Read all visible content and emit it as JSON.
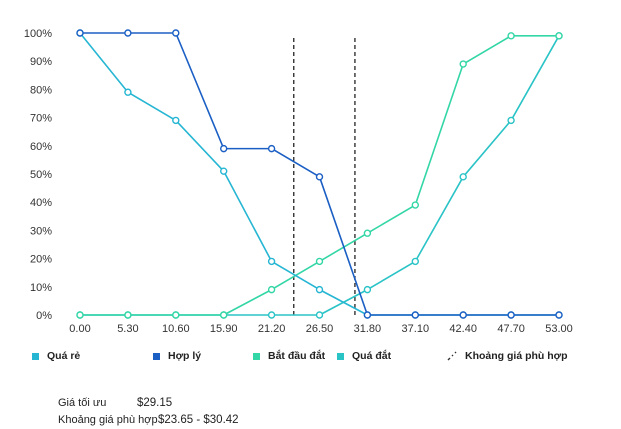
{
  "chart_data": {
    "type": "line",
    "x": [
      "0.00",
      "5.30",
      "10.60",
      "15.90",
      "21.20",
      "26.50",
      "31.80",
      "37.10",
      "42.40",
      "47.70",
      "53.00"
    ],
    "ylim": [
      0,
      100
    ],
    "yticks": [
      "0%",
      "10%",
      "20%",
      "30%",
      "40%",
      "50%",
      "60%",
      "70%",
      "80%",
      "90%",
      "100%"
    ],
    "series": [
      {
        "name": "Quá rẻ",
        "color": "#26b6d3",
        "values": [
          100,
          79,
          69,
          51,
          19,
          9,
          0,
          0,
          0,
          0,
          0
        ]
      },
      {
        "name": "Hợp lý",
        "color": "#1b5fc4",
        "values": [
          100,
          100,
          100,
          59,
          59,
          49,
          0,
          0,
          0,
          0,
          0
        ]
      },
      {
        "name": "Bắt đầu đắt",
        "color": "#33d6a6",
        "values": [
          0,
          0,
          0,
          0,
          9,
          19,
          29,
          39,
          89,
          99,
          99
        ]
      },
      {
        "name": "Quá đắt",
        "color": "#2ac3c6",
        "values": [
          0,
          0,
          0,
          0,
          0,
          0,
          9,
          19,
          49,
          69,
          99
        ]
      }
    ],
    "range_lines": {
      "name": "Khoảng giá phù hợp",
      "x": [
        23.65,
        30.42
      ],
      "color": "#333333"
    },
    "grid": false,
    "legend_position": "bottom"
  },
  "summary": {
    "optimal_label": "Giá tối ưu",
    "optimal_value": "$29.15",
    "range_label": "Khoảng giá phù hợp",
    "range_value": "$23.65 - $30.42"
  }
}
